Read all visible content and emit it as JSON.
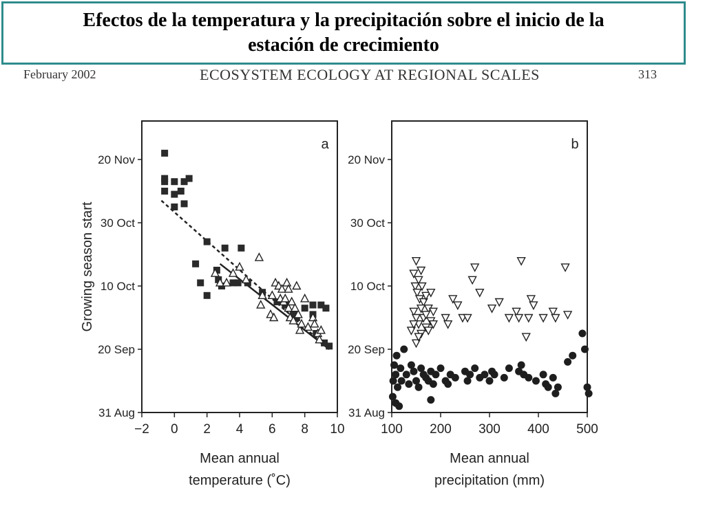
{
  "slide": {
    "title_line1": "Efectos de la temperatura y la precipitación sobre el inicio de la",
    "title_line2": "estación de crecimiento",
    "border_color": "#2e8b8b"
  },
  "journal_header": {
    "left": "February 2002",
    "center": "ECOSYSTEM ECOLOGY AT REGIONAL SCALES",
    "right": "313"
  },
  "chart_data": [
    {
      "type": "scatter",
      "panel_label": "a",
      "xlabel_line1": "Mean annual",
      "xlabel_line2": "temperature (˚C)",
      "ylabel": "Growing season start",
      "xlim": [
        -2,
        10
      ],
      "ylim": [
        0,
        90
      ],
      "x_ticks": [
        -2,
        0,
        2,
        4,
        6,
        8,
        10
      ],
      "x_tick_labels": [
        "−2",
        "0",
        "2",
        "4",
        "6",
        "8",
        "10"
      ],
      "y_ticks": [
        0,
        20,
        40,
        60,
        80
      ],
      "y_tick_labels": [
        "31 Aug",
        "20 Sep",
        "10 Oct",
        "30 Oct",
        "20 Nov"
      ],
      "y_units": "days after 31 Aug",
      "series": [
        {
          "marker": "square",
          "points": [
            [
              -0.6,
              82
            ],
            [
              -0.6,
              73
            ],
            [
              -0.6,
              70
            ],
            [
              0,
              73
            ],
            [
              0,
              69
            ],
            [
              0.6,
              73
            ],
            [
              0.4,
              70
            ],
            [
              0.6,
              66
            ],
            [
              0,
              65
            ],
            [
              -0.6,
              74
            ],
            [
              0.9,
              74
            ],
            [
              2,
              54
            ],
            [
              1.3,
              47
            ],
            [
              1.6,
              41
            ],
            [
              2,
              37
            ],
            [
              2.6,
              45
            ],
            [
              2.7,
              42
            ],
            [
              2.9,
              40
            ],
            [
              3.1,
              52
            ],
            [
              3.6,
              41
            ],
            [
              3.9,
              41
            ],
            [
              4.1,
              52
            ],
            [
              4.5,
              41
            ],
            [
              5.4,
              38
            ],
            [
              6.3,
              35
            ],
            [
              6.8,
              34
            ],
            [
              7.3,
              31
            ],
            [
              7.5,
              30
            ],
            [
              8,
              33
            ],
            [
              8.5,
              34
            ],
            [
              8.5,
              31
            ],
            [
              8.7,
              25
            ],
            [
              9,
              34
            ],
            [
              9.3,
              33
            ],
            [
              9.2,
              22
            ],
            [
              9.5,
              21
            ]
          ]
        },
        {
          "marker": "triangle-up",
          "points": [
            [
              2.5,
              44
            ],
            [
              2.8,
              41
            ],
            [
              3.2,
              41
            ],
            [
              3.6,
              44
            ],
            [
              4,
              46
            ],
            [
              4.4,
              42
            ],
            [
              5.2,
              49
            ],
            [
              5.4,
              37
            ],
            [
              5.9,
              31
            ],
            [
              6.2,
              41
            ],
            [
              6.4,
              40
            ],
            [
              6.6,
              39
            ],
            [
              6.5,
              36
            ],
            [
              6.7,
              35
            ],
            [
              6.9,
              41
            ],
            [
              7,
              39
            ],
            [
              7,
              33
            ],
            [
              7.1,
              30
            ],
            [
              7.2,
              35
            ],
            [
              7.3,
              29
            ],
            [
              7.5,
              40
            ],
            [
              7.6,
              31
            ],
            [
              7.7,
              26
            ],
            [
              7.8,
              28
            ],
            [
              8,
              36
            ],
            [
              8.2,
              27
            ],
            [
              8.5,
              30
            ],
            [
              8.6,
              28
            ],
            [
              8.8,
              25
            ],
            [
              8.9,
              23
            ],
            [
              9,
              26
            ],
            [
              6,
              37
            ],
            [
              6.8,
              36
            ],
            [
              5.3,
              34
            ],
            [
              6.1,
              30
            ],
            [
              7.4,
              33
            ]
          ]
        }
      ],
      "fit_lines": [
        {
          "style": "dashed",
          "from": [
            -0.8,
            67
          ],
          "to": [
            9.5,
            20
          ]
        },
        {
          "style": "solid",
          "from": [
            2.8,
            47
          ],
          "to": [
            9.5,
            20
          ]
        }
      ]
    },
    {
      "type": "scatter",
      "panel_label": "b",
      "xlabel_line1": "Mean annual",
      "xlabel_line2": "precipitation (mm)",
      "ylabel": "",
      "xlim": [
        100,
        500
      ],
      "ylim": [
        0,
        90
      ],
      "x_ticks": [
        100,
        200,
        300,
        400,
        500
      ],
      "x_tick_labels": [
        "100",
        "200",
        "300",
        "400",
        "500"
      ],
      "y_ticks": [
        0,
        20,
        40,
        60,
        80
      ],
      "y_tick_labels": [
        "31 Aug",
        "20 Sep",
        "10 Oct",
        "30 Oct",
        "20 Nov"
      ],
      "y_units": "days after 31 Aug",
      "series": [
        {
          "marker": "circle",
          "points": [
            [
              105,
              15
            ],
            [
              108,
              12
            ],
            [
              103,
              10
            ],
            [
              112,
              8
            ],
            [
              118,
              14
            ],
            [
              110,
              18
            ],
            [
              120,
              10
            ],
            [
              125,
              20
            ],
            [
              130,
              12
            ],
            [
              135,
              9
            ],
            [
              140,
              15
            ],
            [
              145,
              13
            ],
            [
              150,
              10
            ],
            [
              155,
              8
            ],
            [
              160,
              14
            ],
            [
              165,
              12
            ],
            [
              170,
              11
            ],
            [
              175,
              10
            ],
            [
              180,
              13
            ],
            [
              185,
              9
            ],
            [
              190,
              12
            ],
            [
              200,
              14
            ],
            [
              210,
              10
            ],
            [
              215,
              9
            ],
            [
              220,
              12
            ],
            [
              230,
              11
            ],
            [
              250,
              13
            ],
            [
              255,
              10
            ],
            [
              260,
              12
            ],
            [
              270,
              14
            ],
            [
              280,
              11
            ],
            [
              290,
              12
            ],
            [
              300,
              10
            ],
            [
              305,
              13
            ],
            [
              310,
              12
            ],
            [
              330,
              11
            ],
            [
              340,
              14
            ],
            [
              360,
              13
            ],
            [
              365,
              15
            ],
            [
              370,
              12
            ],
            [
              380,
              11
            ],
            [
              395,
              10
            ],
            [
              410,
              12
            ],
            [
              415,
              9
            ],
            [
              420,
              8
            ],
            [
              430,
              11
            ],
            [
              435,
              6
            ],
            [
              440,
              8
            ],
            [
              460,
              16
            ],
            [
              470,
              18
            ],
            [
              490,
              25
            ],
            [
              495,
              20
            ],
            [
              500,
              8
            ],
            [
              503,
              6
            ],
            [
              102,
              5
            ],
            [
              108,
              3
            ],
            [
              115,
              2
            ],
            [
              180,
              4
            ]
          ]
        },
        {
          "marker": "triangle-down",
          "points": [
            [
              145,
              44
            ],
            [
              150,
              48
            ],
            [
              155,
              42
            ],
            [
              160,
              45
            ],
            [
              148,
              40
            ],
            [
              152,
              38
            ],
            [
              157,
              36
            ],
            [
              162,
              40
            ],
            [
              165,
              35
            ],
            [
              170,
              37
            ],
            [
              175,
              33
            ],
            [
              180,
              38
            ],
            [
              185,
              32
            ],
            [
              145,
              32
            ],
            [
              150,
              30
            ],
            [
              155,
              28
            ],
            [
              160,
              25
            ],
            [
              165,
              30
            ],
            [
              170,
              27
            ],
            [
              175,
              26
            ],
            [
              180,
              29
            ],
            [
              150,
              22
            ],
            [
              155,
              24
            ],
            [
              140,
              26
            ],
            [
              145,
              28
            ],
            [
              160,
              33
            ],
            [
              170,
              31
            ],
            [
              185,
              28
            ],
            [
              210,
              30
            ],
            [
              215,
              28
            ],
            [
              225,
              36
            ],
            [
              235,
              34
            ],
            [
              245,
              30
            ],
            [
              255,
              30
            ],
            [
              265,
              42
            ],
            [
              270,
              46
            ],
            [
              280,
              38
            ],
            [
              305,
              33
            ],
            [
              320,
              35
            ],
            [
              340,
              30
            ],
            [
              355,
              32
            ],
            [
              360,
              30
            ],
            [
              365,
              48
            ],
            [
              375,
              24
            ],
            [
              380,
              30
            ],
            [
              385,
              36
            ],
            [
              390,
              34
            ],
            [
              410,
              30
            ],
            [
              430,
              32
            ],
            [
              435,
              30
            ],
            [
              455,
              46
            ],
            [
              460,
              31
            ]
          ]
        }
      ],
      "fit_lines": []
    }
  ]
}
